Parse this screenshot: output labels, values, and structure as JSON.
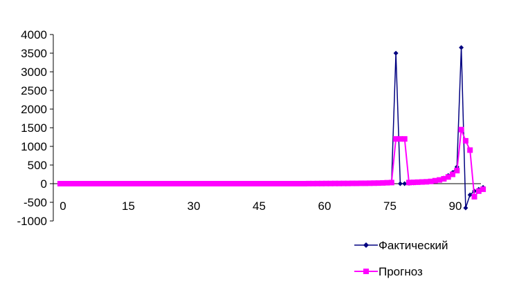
{
  "chart_data": {
    "type": "line",
    "title": "",
    "xlabel": "",
    "ylabel": "",
    "ylim": [
      -1000,
      4000
    ],
    "y_ticks": [
      4000,
      3500,
      3000,
      2500,
      2000,
      1500,
      1000,
      500,
      0,
      -500,
      -1000
    ],
    "y_tick_labels": [
      "4000",
      "3500",
      "3000",
      "2500",
      "2000",
      "1500",
      "1000",
      "500",
      "0",
      "-500",
      "-1000"
    ],
    "x_ticks": [
      0,
      15,
      30,
      45,
      60,
      75,
      90
    ],
    "x_tick_labels": [
      "0",
      "15",
      "30",
      "45",
      "60",
      "75",
      "90"
    ],
    "x_axis_crosses_at_y": 0,
    "x_tick_labels_position": "below-zero-line",
    "grid": false,
    "legend": "bottom-right",
    "series": [
      {
        "name": "Фактический",
        "color": "#000080",
        "marker": "diamond",
        "x": [
          0,
          1,
          2,
          3,
          4,
          5,
          6,
          7,
          8,
          9,
          10,
          11,
          12,
          13,
          14,
          15,
          16,
          17,
          18,
          19,
          20,
          21,
          22,
          23,
          24,
          25,
          26,
          27,
          28,
          29,
          30,
          31,
          32,
          33,
          34,
          35,
          36,
          37,
          38,
          39,
          40,
          41,
          42,
          43,
          44,
          45,
          46,
          47,
          48,
          49,
          50,
          51,
          52,
          53,
          54,
          55,
          56,
          57,
          58,
          59,
          60,
          61,
          62,
          63,
          64,
          65,
          66,
          67,
          68,
          69,
          70,
          71,
          72,
          73,
          74,
          75,
          76,
          77,
          78,
          79,
          80,
          81,
          82,
          83,
          84,
          85,
          86,
          87,
          88,
          89,
          90,
          91,
          92,
          93,
          94,
          95,
          96,
          97
        ],
        "values": [
          0,
          0,
          0,
          0,
          0,
          0,
          0,
          0,
          0,
          0,
          0,
          0,
          0,
          0,
          0,
          0,
          0,
          0,
          0,
          0,
          0,
          0,
          0,
          0,
          0,
          0,
          0,
          0,
          0,
          0,
          0,
          0,
          0,
          0,
          0,
          0,
          0,
          0,
          0,
          0,
          0,
          0,
          0,
          0,
          0,
          0,
          0,
          0,
          0,
          0,
          0,
          0,
          0,
          0,
          0,
          0,
          0,
          0,
          0,
          0,
          0,
          0,
          0,
          0,
          0,
          0,
          0,
          0,
          2,
          4,
          6,
          8,
          10,
          12,
          14,
          16,
          20,
          3500,
          0,
          0,
          10,
          20,
          30,
          40,
          50,
          60,
          80,
          100,
          150,
          220,
          300,
          450,
          3650,
          -650,
          -300,
          -200,
          -150,
          -100
        ]
      },
      {
        "name": "Прогноз",
        "color": "#FF00FF",
        "marker": "square",
        "x": [
          0,
          1,
          2,
          3,
          4,
          5,
          6,
          7,
          8,
          9,
          10,
          11,
          12,
          13,
          14,
          15,
          16,
          17,
          18,
          19,
          20,
          21,
          22,
          23,
          24,
          25,
          26,
          27,
          28,
          29,
          30,
          31,
          32,
          33,
          34,
          35,
          36,
          37,
          38,
          39,
          40,
          41,
          42,
          43,
          44,
          45,
          46,
          47,
          48,
          49,
          50,
          51,
          52,
          53,
          54,
          55,
          56,
          57,
          58,
          59,
          60,
          61,
          62,
          63,
          64,
          65,
          66,
          67,
          68,
          69,
          70,
          71,
          72,
          73,
          74,
          75,
          76,
          77,
          78,
          79,
          80,
          81,
          82,
          83,
          84,
          85,
          86,
          87,
          88,
          89,
          90,
          91,
          92,
          93,
          94,
          95,
          96,
          97
        ],
        "values": [
          0,
          0,
          0,
          0,
          0,
          0,
          0,
          0,
          0,
          0,
          0,
          0,
          0,
          0,
          0,
          0,
          0,
          0,
          0,
          0,
          0,
          0,
          0,
          0,
          0,
          0,
          0,
          0,
          0,
          0,
          0,
          0,
          0,
          0,
          0,
          0,
          0,
          0,
          0,
          0,
          0,
          0,
          0,
          0,
          0,
          0,
          0,
          0,
          0,
          0,
          0,
          0,
          0,
          0,
          0,
          0,
          0,
          2,
          2,
          3,
          3,
          4,
          4,
          5,
          5,
          6,
          6,
          8,
          8,
          10,
          10,
          12,
          14,
          16,
          20,
          25,
          30,
          1200,
          1200,
          1200,
          30,
          35,
          40,
          45,
          50,
          60,
          80,
          100,
          130,
          180,
          250,
          350,
          1450,
          1150,
          900,
          -350,
          -200,
          -150
        ]
      }
    ]
  }
}
